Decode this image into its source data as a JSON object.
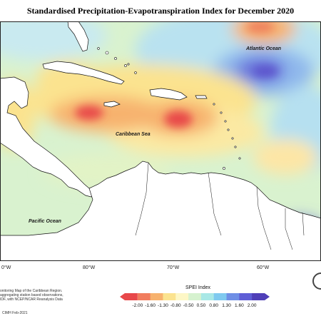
{
  "title": "Standardised Precipitation-Evapotranspiration Index for December 2020",
  "labels": {
    "atlantic": "Atlantic Ocean",
    "caribbean": "Caribbean Sea",
    "pacific": "Pacific Ocean"
  },
  "longitudes": [
    "0°W",
    "80°W",
    "70°W",
    "60°W"
  ],
  "legend": {
    "title": "SPEI Index",
    "ticks": [
      "-2.00",
      "-1.60",
      "-1.30",
      "-0.80",
      "-0.50",
      "0.50",
      "0.80",
      "1.30",
      "1.60",
      "2.00"
    ],
    "colors": [
      "#e8484a",
      "#f17d5e",
      "#f7b26e",
      "#fbe38f",
      "#fdf7c6",
      "#d6f2cf",
      "#a9e8e6",
      "#7fc9ef",
      "#6f8fe6",
      "#5f5ed6",
      "#4f3fb8"
    ]
  },
  "notes": [
    "onitoring Map of the Caribbean Region.",
    "aggregating station based observations,",
    "IDF, with NCEP/NCAR Reanalysis Data"
  ],
  "credit": "CIMH Feb-2021"
}
